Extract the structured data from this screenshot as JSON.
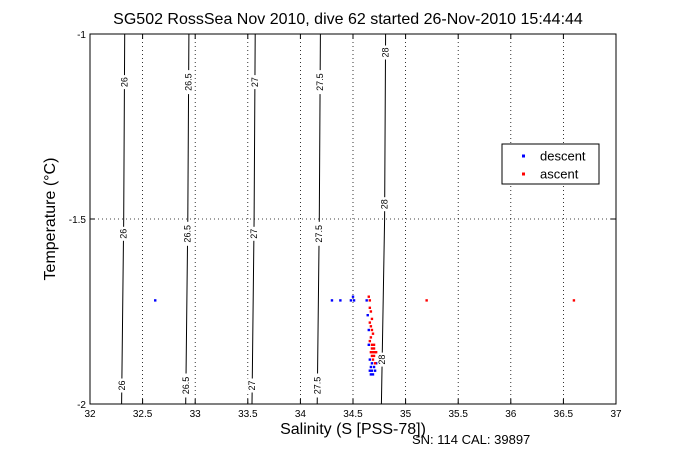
{
  "chart_data": {
    "type": "scatter",
    "title": "SG502 RossSea Nov 2010, dive 62 started 26-Nov-2010 15:44:44",
    "xlabel": "Salinity (S [PSS-78])",
    "ylabel": "Temperature (°C)",
    "xlim": [
      32,
      37
    ],
    "ylim": [
      -2,
      -1
    ],
    "xticks": [
      "32",
      "32.5",
      "33",
      "33.5",
      "34",
      "34.5",
      "35",
      "35.5",
      "36",
      "36.5",
      "37"
    ],
    "yticks": [
      "-2",
      "-1.5",
      "-1"
    ],
    "grid": true,
    "legend_position": "right",
    "footer": "SN: 114  CAL: 39897",
    "contours": [
      {
        "label": "26",
        "points": [
          [
            32.33,
            -1
          ],
          [
            32.32,
            -1.5
          ],
          [
            32.3,
            -2
          ]
        ],
        "label_at": [
          -1.13,
          -1.54,
          -1.95
        ]
      },
      {
        "label": "26.5",
        "points": [
          [
            32.94,
            -1
          ],
          [
            32.93,
            -1.5
          ],
          [
            32.91,
            -2
          ]
        ],
        "label_at": [
          -1.13,
          -1.54,
          -1.95
        ]
      },
      {
        "label": "27",
        "points": [
          [
            33.57,
            -1
          ],
          [
            33.56,
            -1.5
          ],
          [
            33.54,
            -2
          ]
        ],
        "label_at": [
          -1.13,
          -1.54,
          -1.95
        ]
      },
      {
        "label": "27.5",
        "points": [
          [
            34.19,
            -1
          ],
          [
            34.18,
            -1.5
          ],
          [
            34.16,
            -2
          ]
        ],
        "label_at": [
          -1.13,
          -1.54,
          -1.95
        ]
      },
      {
        "label": "28",
        "points": [
          [
            34.81,
            -1
          ],
          [
            34.8,
            -1.5
          ],
          [
            34.77,
            -2
          ]
        ],
        "label_at": [
          -1.05,
          -1.46,
          -1.88
        ]
      }
    ],
    "series": [
      {
        "name": "descent",
        "color": "#0000ff",
        "x": [
          32.62,
          34.3,
          34.38,
          34.48,
          34.5,
          34.51,
          34.63,
          34.64,
          34.65,
          34.65,
          34.66,
          34.66,
          34.67,
          34.67,
          34.68,
          34.68,
          34.69,
          34.7,
          34.71,
          34.72
        ],
        "y": [
          -1.72,
          -1.72,
          -1.72,
          -1.72,
          -1.71,
          -1.72,
          -1.72,
          -1.76,
          -1.8,
          -1.84,
          -1.88,
          -1.91,
          -1.92,
          -1.9,
          -1.89,
          -1.91,
          -1.92,
          -1.9,
          -1.91,
          -1.89
        ]
      },
      {
        "name": "ascent",
        "color": "#ff0000",
        "x": [
          34.65,
          34.66,
          34.66,
          34.67,
          34.68,
          34.66,
          34.67,
          34.68,
          34.69,
          34.67,
          34.66,
          34.68,
          34.7,
          34.68,
          34.67,
          34.69,
          34.7,
          34.71,
          34.68,
          34.69,
          34.7,
          34.72,
          34.71,
          35.2,
          36.6
        ],
        "y": [
          -1.71,
          -1.72,
          -1.74,
          -1.75,
          -1.77,
          -1.78,
          -1.79,
          -1.8,
          -1.81,
          -1.82,
          -1.83,
          -1.84,
          -1.84,
          -1.85,
          -1.86,
          -1.86,
          -1.85,
          -1.86,
          -1.87,
          -1.88,
          -1.87,
          -1.86,
          -1.89,
          -1.72,
          -1.72
        ]
      }
    ]
  }
}
